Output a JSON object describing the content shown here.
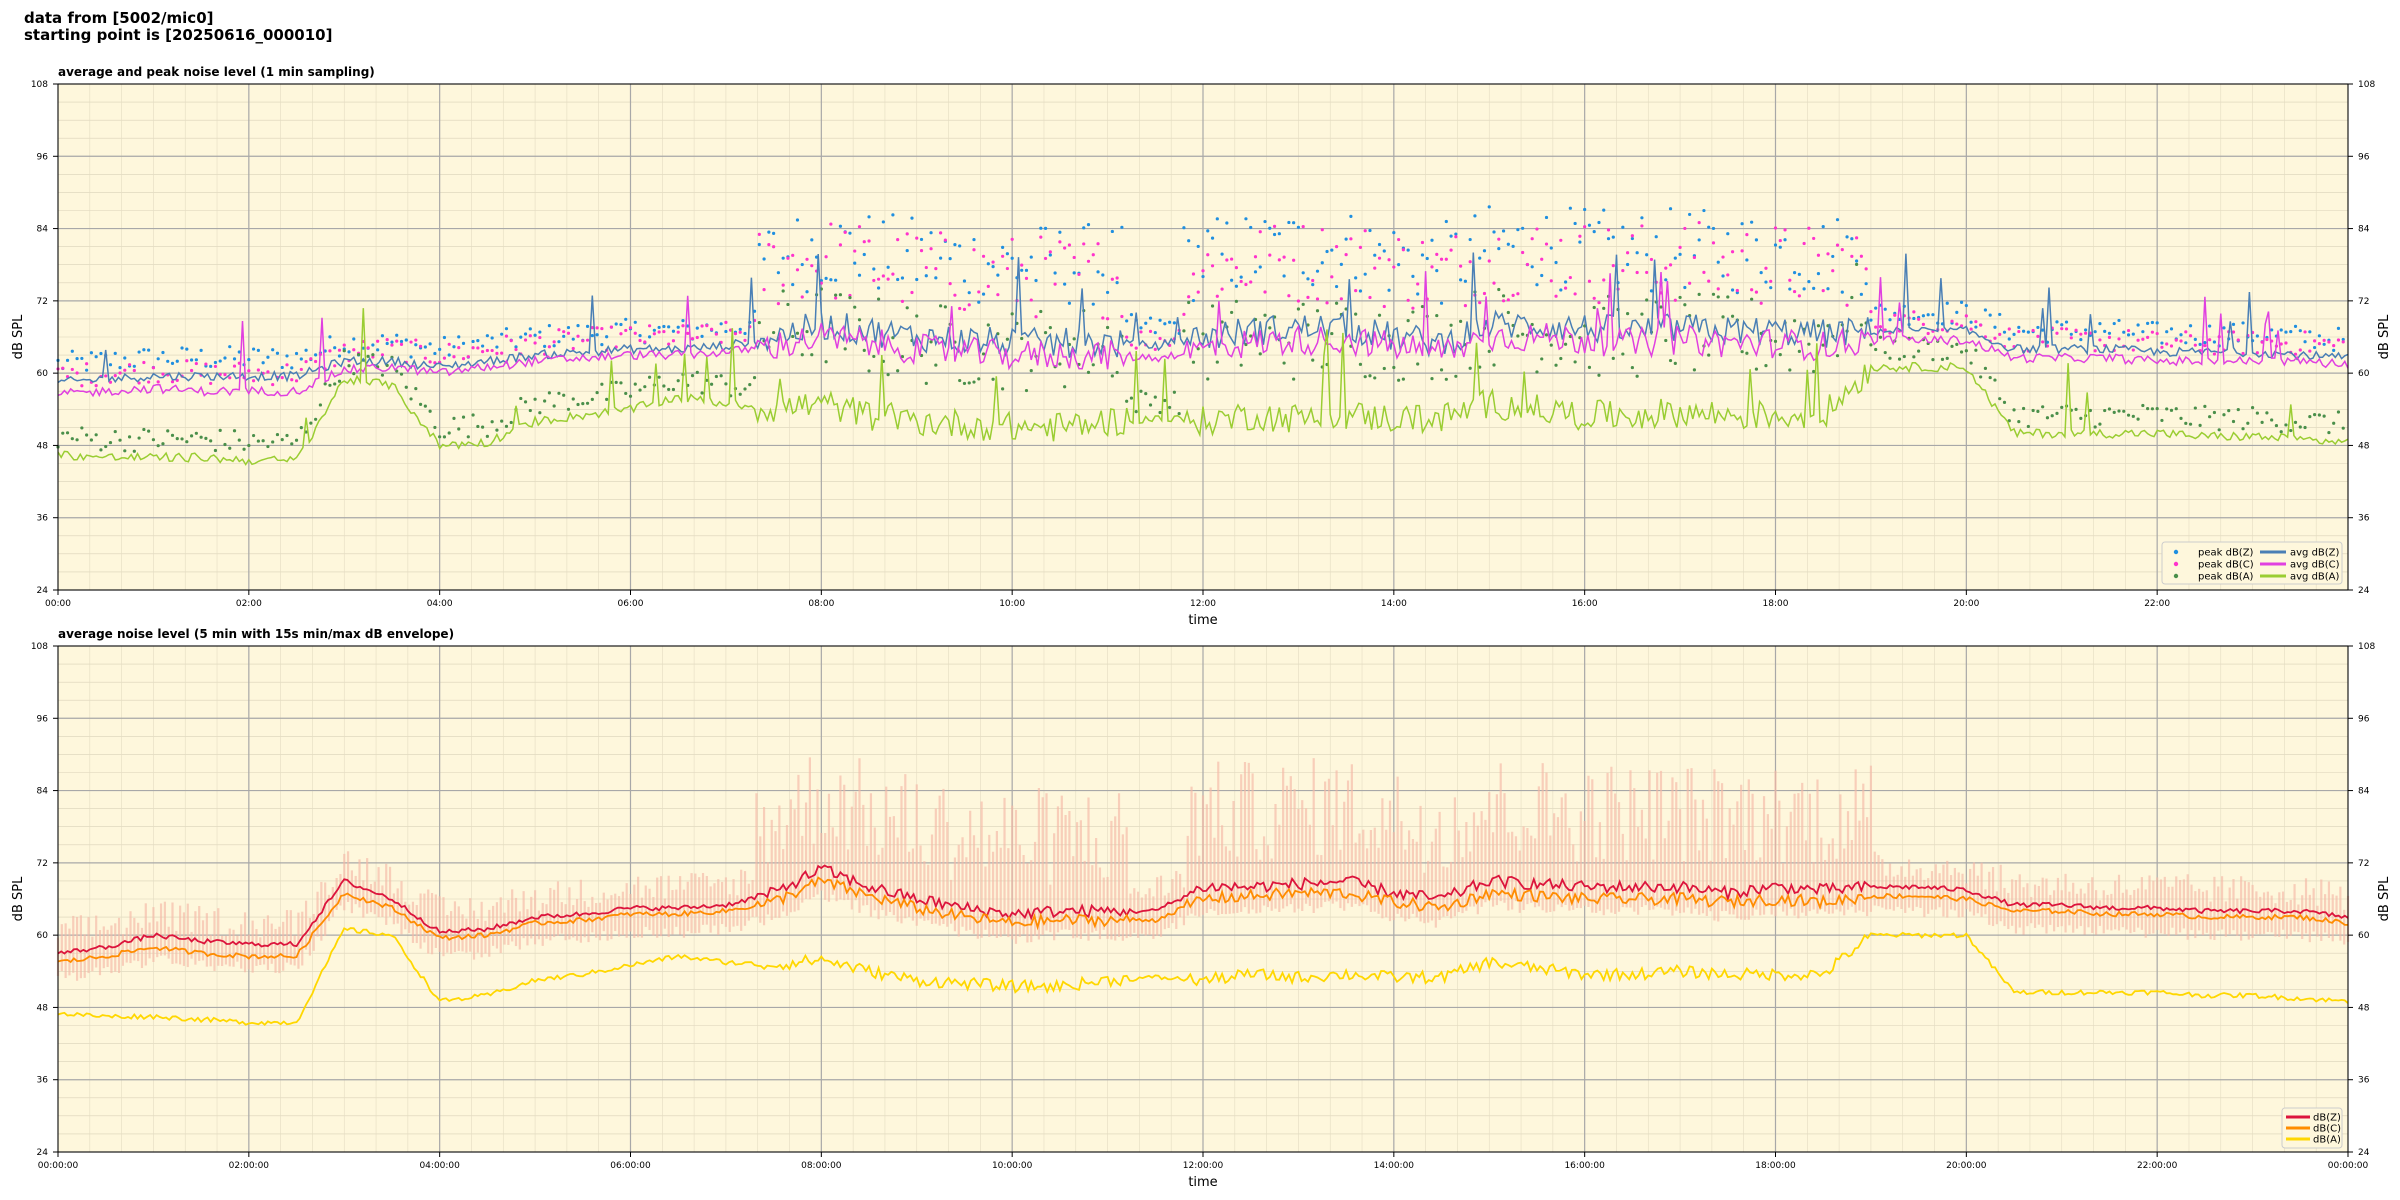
{
  "header": {
    "line1": "data from [5002/mic0]",
    "line2": "starting point is [20250616_000010]"
  },
  "colors": {
    "background": "#fef7dc",
    "avg_dbz": "#4a7fb5",
    "avg_dbc": "#e040e0",
    "avg_dba": "#9acd32",
    "peak_dbz": "#1f8fe0",
    "peak_dbc": "#ff33cc",
    "peak_dba": "#4a8f4a",
    "env_dbz": "#dc143c",
    "env_dbc": "#ff8c00",
    "env_dba": "#ffd700",
    "envelope_fill": "#f5b8a6"
  },
  "chart_data": [
    {
      "type": "line",
      "title": "average and peak noise level (1 min sampling)",
      "xlabel": "time",
      "ylabel": "dB SPL",
      "ylabel_right": "dB SPL",
      "xlim": [
        0,
        24
      ],
      "ylim": [
        24,
        108
      ],
      "yticks": [
        24,
        36,
        48,
        60,
        72,
        84,
        96,
        108
      ],
      "xtick_hours": [
        0,
        2,
        4,
        6,
        8,
        10,
        12,
        14,
        16,
        18,
        20,
        22
      ],
      "xtick_labels": [
        "00:00",
        "02:00",
        "04:00",
        "06:00",
        "08:00",
        "10:00",
        "12:00",
        "14:00",
        "16:00",
        "18:00",
        "20:00",
        "22:00"
      ],
      "grid": true,
      "legend_position": "lower-right",
      "legend": [
        {
          "label": "peak dB(Z)",
          "kind": "dot",
          "color": "#1f8fe0"
        },
        {
          "label": "peak dB(C)",
          "kind": "dot",
          "color": "#ff33cc"
        },
        {
          "label": "peak dB(A)",
          "kind": "dot",
          "color": "#4a8f4a"
        },
        {
          "label": "avg dB(Z)",
          "kind": "line",
          "color": "#4a7fb5"
        },
        {
          "label": "avg dB(C)",
          "kind": "line",
          "color": "#e040e0"
        },
        {
          "label": "avg dB(A)",
          "kind": "line",
          "color": "#9acd32"
        }
      ],
      "series": [
        {
          "name": "avg dB(Z)",
          "x": [
            0,
            0.5,
            1,
            1.5,
            2,
            2.5,
            3,
            3.5,
            4,
            4.5,
            5,
            5.5,
            6,
            6.5,
            7,
            7.5,
            8,
            8.5,
            9,
            9.5,
            10,
            10.5,
            11,
            11.5,
            12,
            12.5,
            13,
            13.5,
            14,
            14.5,
            15,
            15.5,
            16,
            16.5,
            17,
            17.5,
            18,
            18.5,
            19,
            19.5,
            20,
            20.5,
            21,
            21.5,
            22,
            22.5,
            23,
            23.5,
            24
          ],
          "y": [
            58.5,
            59,
            59.5,
            59.5,
            59.5,
            59.5,
            62,
            62,
            61,
            62,
            63,
            63.5,
            64,
            64,
            64.5,
            66,
            68,
            67,
            66,
            65.5,
            65,
            65,
            65,
            64.5,
            66,
            67,
            67.5,
            67.5,
            66,
            65,
            68,
            68,
            67.5,
            67,
            67.5,
            67,
            67,
            66.5,
            67,
            67,
            67,
            64,
            64,
            64,
            63.5,
            63.5,
            63.5,
            63,
            62.5
          ]
        },
        {
          "name": "avg dB(C)",
          "x": [
            0,
            0.5,
            1,
            1.5,
            2,
            2.5,
            3,
            3.5,
            4,
            4.5,
            5,
            5.5,
            6,
            6.5,
            7,
            7.5,
            8,
            8.5,
            9,
            9.5,
            10,
            10.5,
            11,
            11.5,
            12,
            12.5,
            13,
            13.5,
            14,
            14.5,
            15,
            15.5,
            16,
            16.5,
            17,
            17.5,
            18,
            18.5,
            19,
            19.5,
            20,
            20.5,
            21,
            21.5,
            22,
            22.5,
            23,
            23.5,
            24
          ],
          "y": [
            56.5,
            57,
            57.5,
            57,
            57,
            57,
            60.5,
            61,
            60,
            61,
            62,
            62.5,
            63,
            63,
            63.5,
            64.5,
            66,
            65,
            64,
            63.5,
            63,
            63,
            63,
            62.5,
            64,
            65,
            65.5,
            65.5,
            64.5,
            63.5,
            66,
            66,
            65.5,
            65,
            65.5,
            65,
            65,
            64.5,
            65.5,
            65.5,
            65.5,
            62.5,
            62.5,
            62.5,
            62,
            62,
            62,
            62,
            61.5
          ]
        },
        {
          "name": "avg dB(A)",
          "x": [
            0,
            0.5,
            1,
            1.5,
            2,
            2.5,
            3,
            3.5,
            4,
            4.5,
            5,
            5.5,
            6,
            6.5,
            7,
            7.5,
            8,
            8.5,
            9,
            9.5,
            10,
            10.5,
            11,
            11.5,
            12,
            12.5,
            13,
            13.5,
            14,
            14.5,
            15,
            15.5,
            16,
            16.5,
            17,
            17.5,
            18,
            18.5,
            19,
            19.5,
            20,
            20.5,
            21,
            21.5,
            22,
            22.5,
            23,
            23.5,
            24
          ],
          "y": [
            46.5,
            46,
            46,
            46,
            45.5,
            45.5,
            59,
            58,
            48,
            48.5,
            52,
            53,
            54,
            56,
            55,
            54,
            55,
            53,
            52,
            51.5,
            51,
            51,
            52,
            52.5,
            52,
            53,
            52.5,
            53,
            52.5,
            52.5,
            55,
            54,
            53,
            53,
            53.5,
            53,
            53,
            53,
            61,
            61,
            61,
            50,
            50,
            50,
            50,
            49.5,
            49.5,
            49,
            48.5
          ]
        }
      ]
    },
    {
      "type": "line",
      "title": "average noise level (5 min with 15s min/max dB envelope)",
      "xlabel": "time",
      "ylabel": "dB SPL",
      "ylabel_right": "dB SPL",
      "xlim": [
        0,
        24
      ],
      "ylim": [
        24,
        108
      ],
      "yticks": [
        24,
        36,
        48,
        60,
        72,
        84,
        96,
        108
      ],
      "xtick_hours": [
        0,
        2,
        4,
        6,
        8,
        10,
        12,
        14,
        16,
        18,
        20,
        22,
        24
      ],
      "xtick_labels": [
        "00:00:00",
        "02:00:00",
        "04:00:00",
        "06:00:00",
        "08:00:00",
        "10:00:00",
        "12:00:00",
        "14:00:00",
        "16:00:00",
        "18:00:00",
        "20:00:00",
        "22:00:00",
        "00:00:00"
      ],
      "grid": true,
      "legend_position": "lower-right",
      "legend": [
        {
          "label": "dB(Z)",
          "kind": "line",
          "color": "#dc143c"
        },
        {
          "label": "dB(C)",
          "kind": "line",
          "color": "#ff8c00"
        },
        {
          "label": "dB(A)",
          "kind": "line",
          "color": "#ffd700"
        }
      ],
      "series": [
        {
          "name": "dB(Z)",
          "x": [
            0,
            0.5,
            1,
            1.5,
            2,
            2.5,
            3,
            3.5,
            4,
            4.5,
            5,
            5.5,
            6,
            6.5,
            7,
            7.5,
            8,
            8.5,
            9,
            9.5,
            10,
            10.5,
            11,
            11.5,
            12,
            12.5,
            13,
            13.5,
            14,
            14.5,
            15,
            15.5,
            16,
            16.5,
            17,
            17.5,
            18,
            18.5,
            19,
            19.5,
            20,
            20.5,
            21,
            21.5,
            22,
            22.5,
            23,
            23.5,
            24
          ],
          "y": [
            57,
            58,
            60,
            59,
            58.5,
            58.5,
            69,
            66,
            60.5,
            61,
            63,
            63.5,
            64.5,
            64.5,
            65,
            67,
            71,
            68,
            66,
            64.5,
            63.5,
            64,
            64,
            64,
            68,
            68,
            68.5,
            69,
            67,
            66,
            69,
            68.5,
            68,
            68,
            68,
            67,
            68,
            67.5,
            68,
            68,
            67.5,
            65,
            65,
            64.5,
            64.5,
            64,
            64,
            64,
            63
          ]
        },
        {
          "name": "dB(C)",
          "x": [
            0,
            0.5,
            1,
            1.5,
            2,
            2.5,
            3,
            3.5,
            4,
            4.5,
            5,
            5.5,
            6,
            6.5,
            7,
            7.5,
            8,
            8.5,
            9,
            9.5,
            10,
            10.5,
            11,
            11.5,
            12,
            12.5,
            13,
            13.5,
            14,
            14.5,
            15,
            15.5,
            16,
            16.5,
            17,
            17.5,
            18,
            18.5,
            19,
            19.5,
            20,
            20.5,
            21,
            21.5,
            22,
            22.5,
            23,
            23.5,
            24
          ],
          "y": [
            55.5,
            56.5,
            58,
            57,
            56.5,
            56.5,
            67,
            64.5,
            59.5,
            60,
            62,
            62.5,
            63.5,
            63.5,
            64,
            65.5,
            69,
            66.5,
            64.5,
            63,
            62,
            62.5,
            62.5,
            62.5,
            66,
            66.5,
            67,
            67,
            65.5,
            64.5,
            67,
            66.5,
            66,
            66,
            66,
            65.5,
            66,
            65.5,
            66.5,
            66.5,
            66,
            64,
            64,
            63.5,
            63.5,
            63,
            63,
            63,
            62
          ]
        },
        {
          "name": "dB(A)",
          "x": [
            0,
            0.5,
            1,
            1.5,
            2,
            2.5,
            3,
            3.5,
            4,
            4.5,
            5,
            5.5,
            6,
            6.5,
            7,
            7.5,
            8,
            8.5,
            9,
            9.5,
            10,
            10.5,
            11,
            11.5,
            12,
            12.5,
            13,
            13.5,
            14,
            14.5,
            15,
            15.5,
            16,
            16.5,
            17,
            17.5,
            18,
            18.5,
            19,
            19.5,
            20,
            20.5,
            21,
            21.5,
            22,
            22.5,
            23,
            23.5,
            24
          ],
          "y": [
            47,
            46.5,
            46.5,
            46,
            45.5,
            45.5,
            61,
            60,
            49,
            50,
            52.5,
            53.5,
            55,
            56.5,
            55.5,
            55,
            56,
            54,
            52.5,
            52,
            51.5,
            51.5,
            52.5,
            53,
            52.5,
            53.5,
            53,
            53.5,
            53,
            53,
            55.5,
            54.5,
            53.5,
            53.5,
            54,
            53.5,
            53.5,
            53.5,
            60,
            60,
            60,
            50.5,
            50.5,
            50.5,
            50.5,
            50,
            50,
            49.5,
            49
          ]
        }
      ]
    }
  ]
}
